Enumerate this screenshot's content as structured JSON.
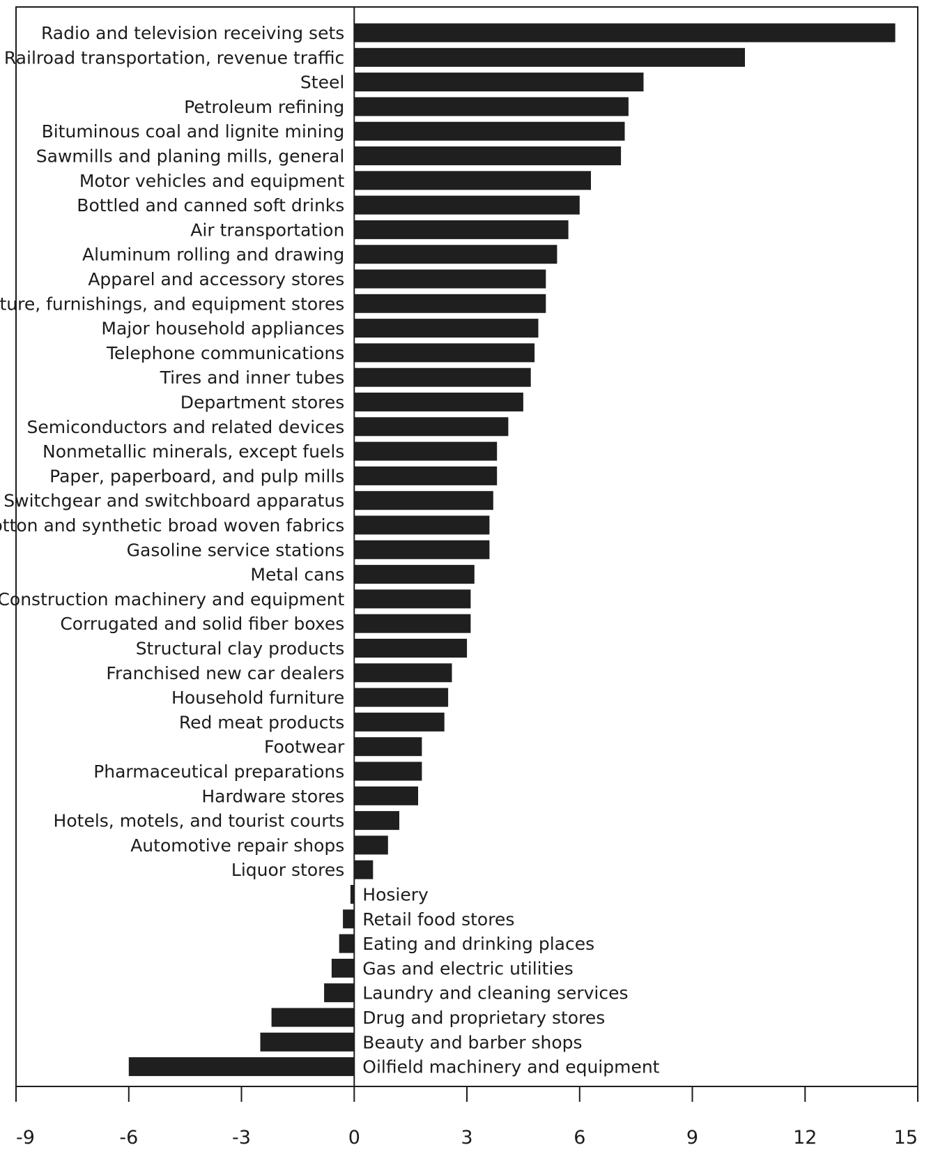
{
  "chart_data": {
    "type": "bar",
    "orientation": "horizontal",
    "title": "",
    "xlabel": "",
    "ylabel": "",
    "xlim": [
      -9,
      15
    ],
    "xticks": [
      "-9",
      "-6",
      "-3",
      "0",
      "3",
      "6",
      "9",
      "12",
      "15"
    ],
    "grid": false,
    "legend": "none",
    "bar_color": "#1f1f1f",
    "categories": [
      "Radio and television receiving sets",
      "Railroad transportation, revenue traffic",
      "Steel",
      "Petroleum refining",
      "Bituminous coal and lignite mining",
      "Sawmills and planing mills, general",
      "Motor vehicles and equipment",
      "Bottled and canned soft drinks",
      "Air transportation",
      "Aluminum rolling and drawing",
      "Apparel and accessory stores",
      "Furniture, furnishings, and equipment stores",
      "Major household appliances",
      "Telephone communications",
      "Tires and inner tubes",
      "Department stores",
      "Semiconductors and related devices",
      "Nonmetallic minerals, except fuels",
      "Paper, paperboard, and pulp mills",
      "Switchgear and switchboard apparatus",
      "Cotton and synthetic broad woven fabrics",
      "Gasoline service stations",
      "Metal cans",
      "Construction machinery and equipment",
      "Corrugated and solid fiber boxes",
      "Structural clay products",
      "Franchised new car dealers",
      "Household furniture",
      "Red meat products",
      "Footwear",
      "Pharmaceutical preparations",
      "Hardware stores",
      "Hotels, motels, and tourist courts",
      "Automotive repair shops",
      "Liquor stores",
      "Hosiery",
      "Retail food stores",
      "Eating and drinking places",
      "Gas and electric utilities",
      "Laundry and cleaning services",
      "Drug and proprietary stores",
      "Beauty and barber shops",
      "Oilfield machinery and equipment"
    ],
    "values": [
      14.4,
      10.4,
      7.7,
      7.3,
      7.2,
      7.1,
      6.3,
      6.0,
      5.7,
      5.4,
      5.1,
      5.1,
      4.9,
      4.8,
      4.7,
      4.5,
      4.1,
      3.8,
      3.8,
      3.7,
      3.6,
      3.6,
      3.2,
      3.1,
      3.1,
      3.0,
      2.6,
      2.5,
      2.4,
      1.8,
      1.8,
      1.7,
      1.2,
      0.9,
      0.5,
      -0.1,
      -0.3,
      -0.4,
      -0.6,
      -0.8,
      -2.2,
      -2.5,
      -6.0
    ]
  }
}
